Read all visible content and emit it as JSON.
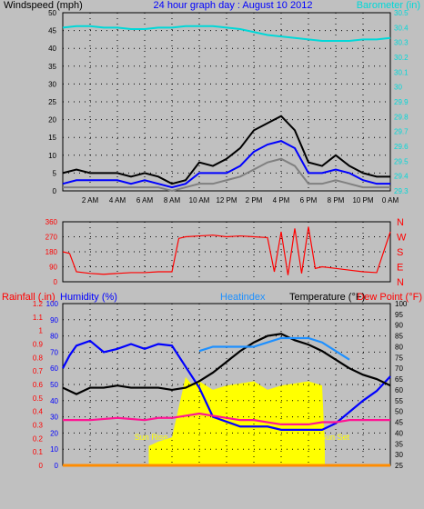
{
  "chart_data": [
    {
      "type": "line",
      "title": "24 hour graph day : August 10 2012",
      "left_axis_label": "Windspeed (mph)",
      "right_axis_label": "Barometer (in)",
      "x_ticks": [
        "2 AM",
        "4 AM",
        "6 AM",
        "8 AM",
        "10 AM",
        "12 PM",
        "2 PM",
        "4 PM",
        "6 PM",
        "8 PM",
        "10 PM",
        "0 AM"
      ],
      "xlim_hours": [
        0,
        24
      ],
      "left_ylim": [
        0,
        50
      ],
      "left_ticks": [
        "0",
        "5",
        "10",
        "15",
        "20",
        "25",
        "30",
        "35",
        "40",
        "45",
        "50"
      ],
      "right_ylim": [
        29.3,
        30.5
      ],
      "right_ticks": [
        "29.3",
        "29.4",
        "29.5",
        "29.6",
        "29.7",
        "29.8",
        "29.9",
        "30",
        "30.1",
        "30.2",
        "30.3",
        "30.4",
        "30.5"
      ],
      "grid": true,
      "series": [
        {
          "name": "Barometer (in)",
          "color": "#00d8d8",
          "axis": "right",
          "x": [
            0,
            1,
            2,
            3,
            4,
            5,
            6,
            7,
            8,
            9,
            10,
            11,
            12,
            13,
            14,
            15,
            16,
            17,
            18,
            19,
            20,
            21,
            22,
            23,
            24
          ],
          "y": [
            30.4,
            30.41,
            30.41,
            30.4,
            30.4,
            30.39,
            30.39,
            30.4,
            30.4,
            30.41,
            30.41,
            30.41,
            30.4,
            30.39,
            30.37,
            30.35,
            30.34,
            30.33,
            30.32,
            30.31,
            30.31,
            30.31,
            30.32,
            30.32,
            30.33
          ]
        },
        {
          "name": "Wind gust",
          "color": "#000000",
          "axis": "left",
          "x": [
            0,
            1,
            2,
            3,
            4,
            5,
            6,
            7,
            8,
            9,
            10,
            11,
            12,
            13,
            14,
            15,
            16,
            17,
            18,
            19,
            20,
            21,
            22,
            23,
            24
          ],
          "y": [
            5,
            6,
            5,
            5,
            5,
            4,
            5,
            4,
            2,
            3,
            8,
            7,
            9,
            12,
            17,
            19,
            21,
            17,
            8,
            7,
            10,
            7,
            5,
            4,
            4
          ]
        },
        {
          "name": "Wind average",
          "color": "#0000ff",
          "axis": "left",
          "x": [
            0,
            1,
            2,
            3,
            4,
            5,
            6,
            7,
            8,
            9,
            10,
            11,
            12,
            13,
            14,
            15,
            16,
            17,
            18,
            19,
            20,
            21,
            22,
            23,
            24
          ],
          "y": [
            2,
            3,
            3,
            3,
            3,
            2,
            3,
            2,
            1,
            2,
            5,
            5,
            5,
            7,
            11,
            13,
            14,
            12,
            5,
            5,
            6,
            5,
            3,
            2,
            2
          ]
        },
        {
          "name": "Windspeed",
          "color": "#808080",
          "axis": "left",
          "x": [
            0,
            1,
            2,
            3,
            4,
            5,
            6,
            7,
            8,
            9,
            10,
            11,
            12,
            13,
            14,
            15,
            16,
            17,
            18,
            19,
            20,
            21,
            22,
            23,
            24
          ],
          "y": [
            1,
            1,
            1,
            1,
            1,
            1,
            1,
            1,
            0,
            1,
            2,
            2,
            3,
            4,
            6,
            8,
            9,
            7,
            2,
            2,
            3,
            2,
            1,
            1,
            1
          ]
        }
      ]
    },
    {
      "type": "line",
      "title": "",
      "left_ylim": [
        0,
        360
      ],
      "left_ticks": [
        "0",
        "90",
        "180",
        "270",
        "360"
      ],
      "right_ticks": [
        "N",
        "E",
        "S",
        "W",
        "N"
      ],
      "xlim_hours": [
        0,
        24
      ],
      "grid": true,
      "series": [
        {
          "name": "Wind direction",
          "color": "#ff0000",
          "x": [
            0,
            0.5,
            1,
            2,
            3,
            4,
            5,
            6,
            7,
            8,
            8.5,
            9,
            10,
            11,
            12,
            13,
            14,
            15,
            15.5,
            16,
            16.5,
            17,
            17.5,
            18,
            18.5,
            19,
            20,
            21,
            22,
            23,
            24
          ],
          "y": [
            180,
            170,
            60,
            50,
            45,
            50,
            55,
            55,
            60,
            60,
            260,
            270,
            275,
            280,
            270,
            275,
            270,
            265,
            60,
            300,
            40,
            320,
            50,
            330,
            80,
            90,
            80,
            70,
            60,
            55,
            300
          ]
        }
      ]
    },
    {
      "type": "line",
      "title": "",
      "left_labels": [
        "Rainfall (.in)",
        "Humidity (%)"
      ],
      "center_labels": [
        "Heatindex",
        "Temperature (°F)"
      ],
      "right_label": "Dew Point (°F)",
      "rain_ticks": [
        "0",
        "0.1",
        "0.2",
        "0.3",
        "0.4",
        "0.5",
        "0.6",
        "0.7",
        "0.8",
        "0.9",
        "1",
        "1.1",
        "1.2"
      ],
      "humidity_ticks": [
        "0",
        "10",
        "20",
        "30",
        "40",
        "50",
        "60",
        "70",
        "80",
        "90",
        "100"
      ],
      "temp_ticks": [
        "25",
        "30",
        "35",
        "40",
        "45",
        "50",
        "55",
        "60",
        "65",
        "70",
        "75",
        "80",
        "85",
        "90",
        "95",
        "100"
      ],
      "rain_ylim": [
        0,
        1.2
      ],
      "humidity_ylim": [
        0,
        100
      ],
      "temp_ylim": [
        25,
        100
      ],
      "xlim_hours": [
        0,
        24
      ],
      "grid": true,
      "annotations": {
        "sunrise": "Sun Rise",
        "sunset": "Sun Set"
      },
      "solar": {
        "color": "#ffff00",
        "x": [
          6.3,
          7,
          8,
          9,
          9.5,
          10,
          11,
          12,
          13,
          14,
          15,
          16,
          17,
          18,
          19,
          19.2
        ],
        "y": [
          34,
          36,
          38,
          66,
          62,
          64,
          60,
          62,
          63,
          64,
          60,
          62,
          63,
          64,
          62,
          34
        ]
      },
      "series": [
        {
          "name": "Humidity (%)",
          "color": "#0000ff",
          "axis": "humidity",
          "x": [
            0,
            0.5,
            1,
            2,
            3,
            4,
            5,
            6,
            7,
            8,
            9,
            10,
            11,
            12,
            13,
            14,
            15,
            16,
            17,
            18,
            19,
            20,
            21,
            22,
            23,
            24
          ],
          "y": [
            60,
            68,
            74,
            77,
            70,
            72,
            75,
            72,
            75,
            74,
            61,
            48,
            30,
            27,
            24,
            24,
            24,
            22,
            22,
            22,
            22,
            26,
            33,
            40,
            46,
            55
          ]
        },
        {
          "name": "Temperature (°F)",
          "color": "#000000",
          "axis": "temp",
          "x": [
            0,
            1,
            2,
            3,
            4,
            5,
            6,
            7,
            8,
            9,
            10,
            11,
            12,
            13,
            14,
            15,
            16,
            17,
            18,
            19,
            20,
            21,
            22,
            23,
            24
          ],
          "y": [
            61,
            58,
            61,
            61,
            62,
            61,
            61,
            61,
            60,
            61,
            64,
            68,
            73,
            78,
            82,
            85,
            86,
            83,
            81,
            78,
            74,
            70,
            67,
            65,
            62
          ]
        },
        {
          "name": "Heatindex",
          "color": "#1e90ff",
          "axis": "temp",
          "x": [
            10,
            11,
            12,
            13,
            14,
            15,
            16,
            17,
            18,
            19,
            20,
            21
          ],
          "y": [
            78,
            80,
            80,
            80,
            80,
            82,
            84,
            84,
            84,
            82,
            78,
            74
          ]
        },
        {
          "name": "Dew Point (°F)",
          "color": "#ff1493",
          "axis": "temp",
          "x": [
            0,
            2,
            4,
            6,
            7,
            8,
            9,
            10,
            11,
            12,
            13,
            14,
            15,
            16,
            17,
            18,
            19,
            20,
            21,
            22,
            23,
            24
          ],
          "y": [
            46,
            46,
            47,
            46,
            47,
            47,
            48,
            49,
            48,
            47,
            46,
            46,
            45,
            44,
            44,
            44,
            45,
            45,
            46,
            46,
            46,
            46
          ]
        },
        {
          "name": "Rainfall (.in)",
          "color": "#ff8c00",
          "axis": "rain",
          "x": [
            0,
            24
          ],
          "y": [
            0,
            0
          ]
        }
      ]
    }
  ]
}
